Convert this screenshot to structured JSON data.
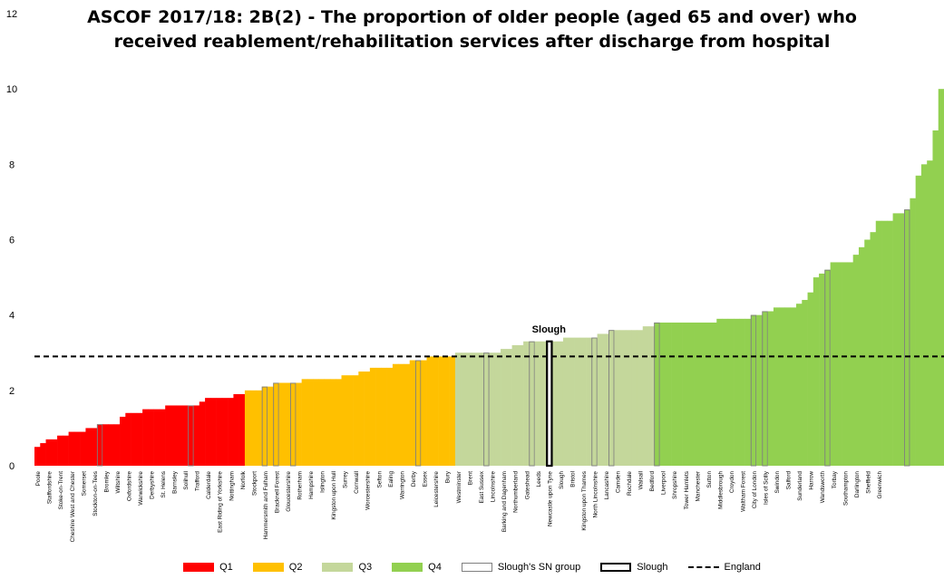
{
  "chart_data": {
    "type": "bar",
    "title_lines": [
      "ASCOF 2017/18: 2B(2) - The proportion of older people (aged 65 and over) who",
      "received reablement/rehabilitation services after discharge from hospital"
    ],
    "ylim": [
      0,
      12
    ],
    "yticks": [
      0,
      2,
      4,
      6,
      8,
      10,
      12
    ],
    "england_value": 2.9,
    "highlight_label": "Slough",
    "colors": {
      "Q1": "#ff0000",
      "Q2": "#ffc000",
      "Q3": "#c4d79b",
      "Q4": "#92d050",
      "outline": "#7f7f7f",
      "highlight": "#000000",
      "england": "#000000"
    },
    "x_labels": [
      "Poole",
      "Staffordshire",
      "Stoke-on-Trent",
      "Cheshire West and Chester",
      "Somerset",
      "Stockton-on-Tees",
      "Bromley",
      "Wiltshire",
      "Oxfordshire",
      "Warwickshire",
      "Derbyshire",
      "St. Helens",
      "Barnsley",
      "Solihull",
      "Trafford",
      "Calderdale",
      "East Riding of Yorkshire",
      "Nottingham",
      "Norfolk",
      "Stockport",
      "Hammersmith and Fulham",
      "Bracknell Forest",
      "Gloucestershire",
      "Rotherham",
      "Hampshire",
      "Islington",
      "Kingston upon Hull",
      "Surrey",
      "Cornwall",
      "Worcestershire",
      "Sefton",
      "Ealing",
      "Warrington",
      "Derby",
      "Essex",
      "Leicestershire",
      "Bury",
      "Westminster",
      "Brent",
      "East Sussex",
      "Lincolnshire",
      "Barking and Dagenham",
      "Northumberland",
      "Gateshead",
      "Leeds",
      "Newcastle upon Tyne",
      "Slough",
      "Bristol",
      "Kingston upon Thames",
      "North Lincolnshire",
      "Lancashire",
      "Camden",
      "Rochdale",
      "Walsall",
      "Bedford",
      "Liverpool",
      "Shropshire",
      "Tower Hamlets",
      "Manchester",
      "Sutton",
      "Middlesbrough",
      "Croydon",
      "Waltham Forest",
      "City of London",
      "Isles of Scilly",
      "Swindon",
      "Salford",
      "Sunderland",
      "Harrow",
      "Wandsworth",
      "Torbay",
      "Southampton",
      "Darlington",
      "Sheffield",
      "Greenwich"
    ],
    "bars": [
      {
        "q": "Q1",
        "values": [
          0.5,
          0.6,
          0.7,
          0.7,
          0.8,
          0.8,
          0.9,
          0.9,
          0.9,
          1.0,
          1.0,
          1.1,
          1.1,
          1.1,
          1.1,
          1.3,
          1.4,
          1.4,
          1.4,
          1.5,
          1.5,
          1.5,
          1.5,
          1.6,
          1.6,
          1.6,
          1.6,
          1.6,
          1.6,
          1.7,
          1.8,
          1.8,
          1.8,
          1.8,
          1.8,
          1.9,
          1.9
        ],
        "sn": [
          11,
          27
        ]
      },
      {
        "q": "Q2",
        "values": [
          2.0,
          2.0,
          2.0,
          2.1,
          2.1,
          2.2,
          2.2,
          2.2,
          2.2,
          2.2,
          2.3,
          2.3,
          2.3,
          2.3,
          2.3,
          2.3,
          2.3,
          2.4,
          2.4,
          2.4,
          2.5,
          2.5,
          2.6,
          2.6,
          2.6,
          2.6,
          2.7,
          2.7,
          2.7,
          2.8,
          2.8,
          2.8,
          2.9,
          2.9,
          2.9,
          2.9,
          2.9
        ],
        "sn": [
          3,
          5,
          8,
          30
        ]
      },
      {
        "q": "Q3",
        "values": [
          3.0,
          3.0,
          3.0,
          3.0,
          3.0,
          3.0,
          3.0,
          3.0,
          3.1,
          3.1,
          3.2,
          3.2,
          3.3,
          3.3,
          3.3,
          3.3,
          3.3,
          3.3,
          3.3,
          3.4,
          3.4,
          3.4,
          3.4,
          3.4,
          3.4,
          3.5,
          3.5,
          3.6,
          3.6,
          3.6,
          3.6,
          3.6,
          3.6,
          3.7,
          3.7
        ],
        "sn": [
          5,
          13,
          24,
          27
        ],
        "slough": 16
      },
      {
        "q": "Q4",
        "values": [
          3.8,
          3.8,
          3.8,
          3.8,
          3.8,
          3.8,
          3.8,
          3.8,
          3.8,
          3.8,
          3.8,
          3.9,
          3.9,
          3.9,
          3.9,
          3.9,
          3.9,
          4.0,
          4.0,
          4.1,
          4.1,
          4.2,
          4.2,
          4.2,
          4.2,
          4.3,
          4.4,
          4.6,
          5.0,
          5.1,
          5.2,
          5.4,
          5.4,
          5.4,
          5.4,
          5.6,
          5.8,
          6.0,
          6.2,
          6.5,
          6.5,
          6.5,
          6.7,
          6.7,
          6.8,
          7.1,
          7.7,
          8.0,
          8.1,
          8.9,
          10.0
        ],
        "sn": [
          0,
          17,
          19,
          44,
          30
        ]
      }
    ]
  },
  "legend": {
    "items": [
      {
        "label": "Q1",
        "kind": "fill",
        "color": "#ff0000"
      },
      {
        "label": "Q2",
        "kind": "fill",
        "color": "#ffc000"
      },
      {
        "label": "Q3",
        "kind": "fill",
        "color": "#c4d79b"
      },
      {
        "label": "Q4",
        "kind": "fill",
        "color": "#92d050"
      },
      {
        "label": "Slough's SN group",
        "kind": "outline",
        "color": "#7f7f7f"
      },
      {
        "label": "Slough",
        "kind": "highlight",
        "color": "#000000"
      },
      {
        "label": "England",
        "kind": "line",
        "color": "#000000"
      }
    ]
  }
}
